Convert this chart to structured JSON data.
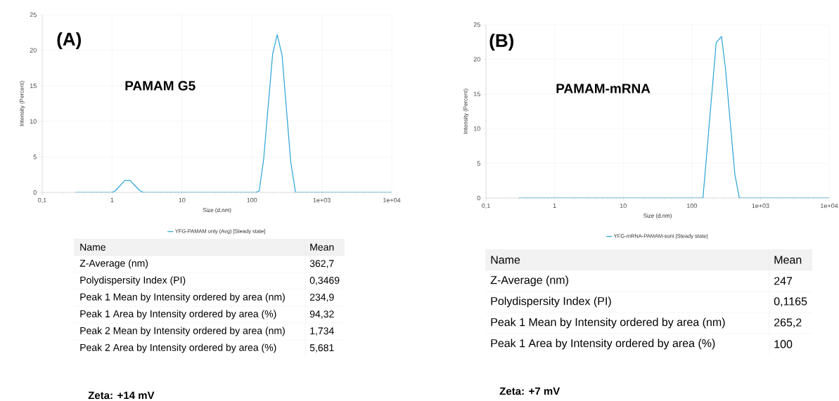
{
  "chart_data": [
    {
      "type": "line",
      "title": "(A)",
      "subtitle": "PAMAM G5",
      "xlabel": "Size (d.nm)",
      "ylabel": "Intensity (Percent)",
      "log": "x",
      "grid": true,
      "legend": "bottom",
      "xlim": [
        0.1,
        10000
      ],
      "ylim": [
        0,
        25
      ],
      "xticks": [
        {
          "value": 0.1,
          "label": "0,1"
        },
        1,
        10,
        100,
        {
          "value": 1000,
          "label": "1e+03"
        },
        {
          "value": 10000,
          "label": "1e+04"
        }
      ],
      "yticks": [
        0,
        5,
        10,
        15,
        20,
        25
      ],
      "series": [
        {
          "name": "YFG-PAMAM only (Avg) [Steady state]",
          "color": "#29a3d6",
          "x": [
            0.3,
            1,
            1.1,
            1.53,
            1.8,
            2.46,
            2.8,
            113,
            127,
            147,
            198,
            230,
            270,
            359,
            421,
            10000
          ],
          "values": [
            0,
            0,
            0.2,
            1.7,
            1.7,
            0.3,
            0,
            0,
            0.2,
            4.6,
            19.5,
            22.2,
            19.3,
            4.3,
            0,
            0
          ]
        }
      ],
      "annotations": [
        "Name",
        "Mean",
        "Z-Average (nm)",
        "362,7",
        "Polydispersity Index (PI)",
        "0,3469",
        "Peak 1 Mean by Intensity ordered by area (nm)",
        "234,9",
        "Peak 1 Area by Intensity ordered by area (%)",
        "94,32",
        "Peak 2 Mean by Intensity ordered by area (nm)",
        "1,734",
        "Peak 2 Area by Intensity ordered by area (%)",
        "5,681",
        "Zeta: +14 mV"
      ]
    },
    {
      "type": "line",
      "title": "(B)",
      "subtitle": "PAMAM-mRNA",
      "xlabel": "Size (d.nm)",
      "ylabel": "Intensity (Percent)",
      "log": "x",
      "grid": true,
      "legend": "bottom",
      "xlim": [
        0.1,
        10000
      ],
      "ylim": [
        0,
        25
      ],
      "xticks": [
        {
          "value": 0.1,
          "label": "0,1"
        },
        1,
        10,
        100,
        {
          "value": 1000,
          "label": "1e+03"
        },
        {
          "value": 10000,
          "label": "1e+04"
        }
      ],
      "yticks": [
        0,
        5,
        10,
        15,
        20,
        25
      ],
      "series": [
        {
          "name": "YFG-mRNA-PAMAM-soni [Steady state]",
          "color": "#29a3d6",
          "x": [
            0.3,
            145,
            226,
            270,
            309,
            423,
            492,
            10000
          ],
          "values": [
            0,
            0,
            22.4,
            23.3,
            18.6,
            3.4,
            0,
            0
          ]
        }
      ],
      "annotations": [
        "Name",
        "Mean",
        "Z-Average (nm)",
        "247",
        "Polydispersity Index (PI)",
        "0,1165",
        "Peak 1 Mean by Intensity ordered by area (nm)",
        "265,2",
        "Peak 1 Area by Intensity ordered by area (%)",
        "100",
        "Zeta: +7 mV"
      ]
    }
  ]
}
